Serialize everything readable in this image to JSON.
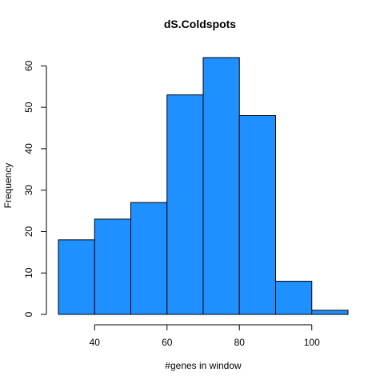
{
  "chart_data": {
    "type": "bar",
    "title": "dS.Coldspots",
    "xlabel": "#genes in window",
    "ylabel": "Frequency",
    "bins": [
      {
        "from": 30,
        "to": 40,
        "count": 18
      },
      {
        "from": 40,
        "to": 50,
        "count": 23
      },
      {
        "from": 50,
        "to": 60,
        "count": 27
      },
      {
        "from": 60,
        "to": 70,
        "count": 53
      },
      {
        "from": 70,
        "to": 80,
        "count": 62
      },
      {
        "from": 80,
        "to": 90,
        "count": 48
      },
      {
        "from": 90,
        "to": 100,
        "count": 8
      },
      {
        "from": 100,
        "to": 110,
        "count": 1
      }
    ],
    "xticks": [
      40,
      60,
      80,
      100
    ],
    "yticks": [
      0,
      10,
      20,
      30,
      40,
      50,
      60
    ],
    "xlim": [
      30,
      110
    ],
    "ylim": [
      0,
      62
    ],
    "bar_color": "#1E90FF",
    "grid": false,
    "legend": "none"
  }
}
